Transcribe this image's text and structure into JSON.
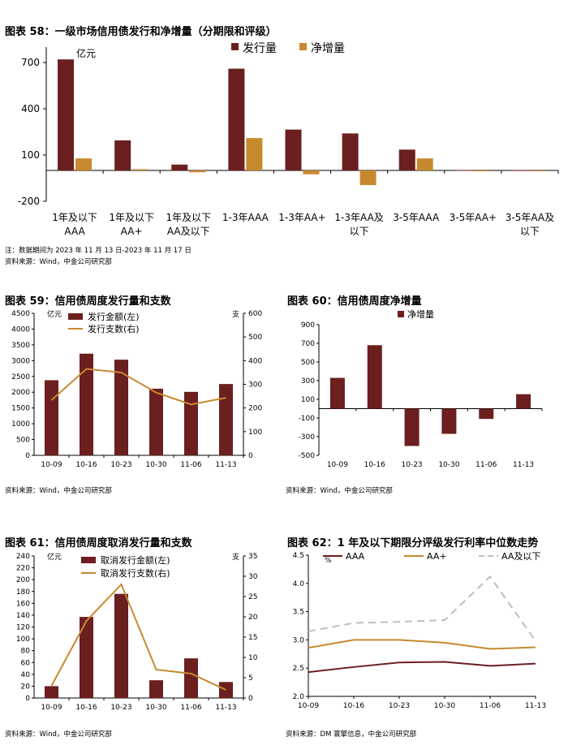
{
  "chart_data": [
    {
      "id": "c58",
      "type": "bar",
      "title": "图表 58：一级市场信用债发行和净增量（分期限和评级）",
      "unit_label": "亿元",
      "categories": [
        [
          "1年及以下",
          "AAA"
        ],
        [
          "1年及以下",
          "AA+"
        ],
        [
          "1年及以下",
          "AA及以下"
        ],
        [
          "1-3年AAA"
        ],
        [
          "1-3年AA+"
        ],
        [
          "1-3年AA及",
          "以下"
        ],
        [
          "3-5年AAA"
        ],
        [
          "3-5年AA+"
        ],
        [
          "3-5年AA及",
          "以下"
        ]
      ],
      "series": [
        {
          "name": "发行量",
          "color": "#6B1F1F",
          "values": [
            720,
            195,
            38,
            660,
            265,
            240,
            135,
            3,
            2
          ]
        },
        {
          "name": "净增量",
          "color": "#C8892E",
          "values": [
            78,
            8,
            -12,
            210,
            -25,
            -95,
            78,
            -3,
            -2
          ]
        }
      ],
      "yticks": [
        700,
        400,
        100,
        -200
      ],
      "ylim": [
        -200,
        800
      ],
      "legend_position": "top-right",
      "notes": [
        "注：数据期间为 2023 年 11 月 13 日-2023 年 11 月 17 日",
        "资料来源：Wind，中金公司研究部"
      ]
    },
    {
      "id": "c59",
      "type": "bar+line",
      "title": "图表 59：信用债周度发行量和支数",
      "left_unit": "亿元",
      "right_unit": "支",
      "categories": [
        "10-09",
        "10-16",
        "10-23",
        "10-30",
        "11-06",
        "11-13"
      ],
      "series": [
        {
          "name": "发行金额(左)",
          "type": "bar",
          "axis": "left",
          "color": "#6B1F1F",
          "values": [
            2380,
            3220,
            3030,
            2110,
            2010,
            2260
          ]
        },
        {
          "name": "发行支数(右)",
          "type": "line",
          "axis": "right",
          "color": "#C8892E",
          "values": [
            233,
            365,
            350,
            265,
            215,
            243
          ]
        }
      ],
      "left_ylim": [
        0,
        4500
      ],
      "left_yticks": [
        0,
        500,
        1000,
        1500,
        2000,
        2500,
        3000,
        3500,
        4000,
        4500
      ],
      "right_ylim": [
        0,
        600
      ],
      "right_yticks": [
        0,
        100,
        200,
        300,
        400,
        500,
        600
      ],
      "source": "资料来源：Wind，中金公司研究部"
    },
    {
      "id": "c60",
      "type": "bar",
      "title": "图表 60：信用债周度净增量",
      "categories": [
        "10-09",
        "10-16",
        "10-23",
        "10-30",
        "11-06",
        "11-13"
      ],
      "series": [
        {
          "name": "净增量",
          "color": "#6B1F1F",
          "values": [
            330,
            680,
            -400,
            -270,
            -110,
            155
          ]
        }
      ],
      "ylim": [
        -500,
        900
      ],
      "yticks": [
        900,
        700,
        500,
        300,
        100,
        -100,
        -300,
        -500
      ],
      "source": "资料来源：Wind，中金公司研究部"
    },
    {
      "id": "c61",
      "type": "bar+line",
      "title": "图表 61：信用债周度取消发行量和支数",
      "left_unit": "亿元",
      "right_unit": "支",
      "categories": [
        "10-09",
        "10-16",
        "10-23",
        "10-30",
        "11-06",
        "11-13"
      ],
      "series": [
        {
          "name": "取消发行金额(左)",
          "type": "bar",
          "axis": "left",
          "color": "#6B1F1F",
          "values": [
            20,
            137,
            176,
            30,
            67,
            27
          ]
        },
        {
          "name": "取消发行支数(右)",
          "type": "line",
          "axis": "right",
          "color": "#C8892E",
          "values": [
            3,
            19,
            28,
            7,
            6,
            2
          ]
        }
      ],
      "left_ylim": [
        0,
        240
      ],
      "left_yticks": [
        0,
        20,
        40,
        60,
        80,
        100,
        120,
        140,
        160,
        180,
        200,
        220,
        240
      ],
      "right_ylim": [
        0,
        35
      ],
      "right_yticks": [
        0,
        5,
        10,
        15,
        20,
        25,
        30,
        35
      ],
      "source": "资料来源：Wind，中金公司研究部"
    },
    {
      "id": "c62",
      "type": "line",
      "title": "图表 62：1 年及以下期限分评级发行利率中位数走势",
      "unit_label": "%",
      "categories": [
        "10-09",
        "10-16",
        "10-23",
        "10-30",
        "11-06",
        "11-13"
      ],
      "series": [
        {
          "name": "AAA",
          "color": "#6B1F1F",
          "dash": false,
          "values": [
            2.43,
            2.52,
            2.6,
            2.61,
            2.54,
            2.58
          ]
        },
        {
          "name": "AA+",
          "color": "#C8892E",
          "dash": false,
          "values": [
            2.86,
            3.0,
            3.0,
            2.95,
            2.84,
            2.87
          ]
        },
        {
          "name": "AA及以下",
          "color": "#BFBFBF",
          "dash": true,
          "values": [
            3.15,
            3.3,
            3.32,
            3.35,
            4.12,
            2.98
          ]
        }
      ],
      "ylim": [
        2.0,
        4.5
      ],
      "yticks": [
        "2.0",
        "2.5",
        "3.0",
        "3.5",
        "4.0",
        "4.5"
      ],
      "source": "资料来源：DM 寰擎信息，中金公司研究部"
    }
  ]
}
